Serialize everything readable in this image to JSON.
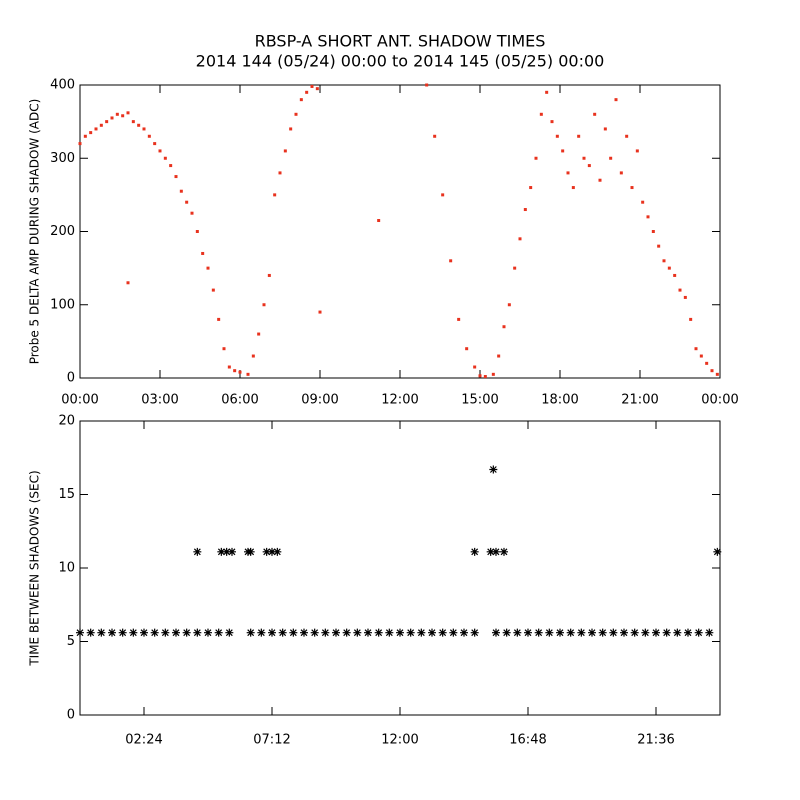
{
  "chart_data": [
    {
      "type": "scatter",
      "title": "RBSP-A SHORT ANT. SHADOW TIMES",
      "subtitle": "2014 144 (05/24) 00:00 to 2014 145 (05/25) 00:00",
      "ylabel": "Probe 5 DELTA AMP DURING SHADOW (ADC)",
      "xlim": [
        0,
        24
      ],
      "ylim": [
        0,
        400
      ],
      "xticks": [
        {
          "value": 0,
          "label": "00:00"
        },
        {
          "value": 3,
          "label": "03:00"
        },
        {
          "value": 6,
          "label": "06:00"
        },
        {
          "value": 9,
          "label": "09:00"
        },
        {
          "value": 12,
          "label": "12:00"
        },
        {
          "value": 15,
          "label": "15:00"
        },
        {
          "value": 18,
          "label": "18:00"
        },
        {
          "value": 21,
          "label": "21:00"
        },
        {
          "value": 24,
          "label": "00:00"
        }
      ],
      "yticks": [
        0,
        100,
        200,
        300,
        400
      ],
      "grid": false,
      "series": [
        {
          "color": "#e8321e",
          "marker": "dot",
          "x": [
            0,
            0.2,
            0.4,
            0.6,
            0.8,
            1.0,
            1.2,
            1.4,
            1.6,
            1.8,
            2.0,
            2.2,
            2.4,
            2.6,
            2.8,
            3.0,
            3.2,
            3.4,
            3.6,
            3.8,
            4.0,
            4.2,
            4.4,
            4.6,
            4.8,
            5.0,
            5.2,
            5.4,
            5.6,
            5.8,
            6.0,
            6.3,
            6.5,
            6.7,
            6.9,
            7.1,
            7.3,
            7.5,
            7.7,
            7.9,
            8.1,
            8.3,
            8.5,
            8.7,
            8.9,
            13.0,
            13.3,
            13.6,
            13.9,
            14.2,
            14.5,
            14.8,
            15.0,
            15.2,
            15.5,
            15.7,
            15.9,
            16.1,
            16.3,
            16.5,
            16.7,
            16.9,
            17.1,
            17.3,
            17.5,
            17.7,
            17.9,
            18.1,
            18.3,
            18.5,
            18.7,
            18.9,
            19.1,
            19.3,
            19.5,
            19.7,
            19.9,
            20.1,
            20.3,
            20.5,
            20.7,
            20.9,
            21.1,
            21.3,
            21.5,
            21.7,
            21.9,
            22.1,
            22.3,
            22.5,
            22.7,
            22.9,
            23.1,
            23.3,
            23.5,
            23.7,
            23.9,
            11.2,
            9.0,
            1.8
          ],
          "y": [
            320,
            330,
            335,
            340,
            345,
            350,
            355,
            360,
            358,
            362,
            350,
            345,
            340,
            330,
            320,
            310,
            300,
            290,
            275,
            255,
            240,
            225,
            200,
            170,
            150,
            120,
            80,
            40,
            15,
            10,
            8,
            5,
            30,
            60,
            100,
            140,
            250,
            280,
            310,
            340,
            360,
            380,
            390,
            398,
            395,
            400,
            330,
            250,
            160,
            80,
            40,
            15,
            3,
            2,
            5,
            30,
            70,
            100,
            150,
            190,
            230,
            260,
            300,
            360,
            390,
            350,
            330,
            310,
            280,
            260,
            330,
            300,
            290,
            360,
            270,
            340,
            300,
            380,
            280,
            330,
            260,
            310,
            240,
            220,
            200,
            180,
            160,
            150,
            140,
            120,
            110,
            80,
            40,
            30,
            20,
            10,
            5,
            215,
            90,
            130
          ]
        }
      ]
    },
    {
      "type": "scatter",
      "ylabel": "TIME BETWEEN SHADOWS (SEC)",
      "xlim": [
        0,
        24
      ],
      "ylim": [
        0,
        20
      ],
      "xticks": [
        {
          "value": 2.4,
          "label": "02:24"
        },
        {
          "value": 7.2,
          "label": "07:12"
        },
        {
          "value": 12,
          "label": "12:00"
        },
        {
          "value": 16.8,
          "label": "16:48"
        },
        {
          "value": 21.6,
          "label": "21:36"
        }
      ],
      "yticks": [
        0,
        5,
        10,
        15,
        20
      ],
      "grid": false,
      "series": [
        {
          "color": "#000000",
          "marker": "asterisk",
          "x": [
            0,
            0.4,
            0.8,
            1.2,
            1.6,
            2.0,
            2.4,
            2.8,
            3.2,
            3.6,
            4.0,
            4.4,
            4.8,
            5.2,
            5.6,
            6.4,
            6.8,
            7.2,
            7.6,
            8.0,
            8.4,
            8.8,
            9.2,
            9.6,
            10.0,
            10.4,
            10.8,
            11.2,
            11.6,
            12.0,
            12.4,
            12.8,
            13.2,
            13.6,
            14.0,
            14.4,
            14.8,
            15.6,
            16.0,
            16.4,
            16.8,
            17.2,
            17.6,
            18.0,
            18.4,
            18.8,
            19.2,
            19.6,
            20.0,
            20.4,
            20.8,
            21.2,
            21.6,
            22.0,
            22.4,
            22.8,
            23.2,
            23.6
          ],
          "y": [
            5.6,
            5.6,
            5.6,
            5.6,
            5.6,
            5.6,
            5.6,
            5.6,
            5.6,
            5.6,
            5.6,
            5.6,
            5.6,
            5.6,
            5.6,
            5.6,
            5.6,
            5.6,
            5.6,
            5.6,
            5.6,
            5.6,
            5.6,
            5.6,
            5.6,
            5.6,
            5.6,
            5.6,
            5.6,
            5.6,
            5.6,
            5.6,
            5.6,
            5.6,
            5.6,
            5.6,
            5.6,
            5.6,
            5.6,
            5.6,
            5.6,
            5.6,
            5.6,
            5.6,
            5.6,
            5.6,
            5.6,
            5.6,
            5.6,
            5.6,
            5.6,
            5.6,
            5.6,
            5.6,
            5.6,
            5.6,
            5.6,
            5.6
          ]
        },
        {
          "color": "#000000",
          "marker": "asterisk",
          "x": [
            4.4,
            5.3,
            5.5,
            5.7,
            6.3,
            6.4,
            7.0,
            7.2,
            7.4,
            14.8,
            15.4,
            15.6,
            15.9,
            23.9,
            15.5
          ],
          "y": [
            11.1,
            11.1,
            11.1,
            11.1,
            11.1,
            11.1,
            11.1,
            11.1,
            11.1,
            11.1,
            11.1,
            11.1,
            11.1,
            11.1,
            16.7
          ]
        }
      ]
    }
  ]
}
